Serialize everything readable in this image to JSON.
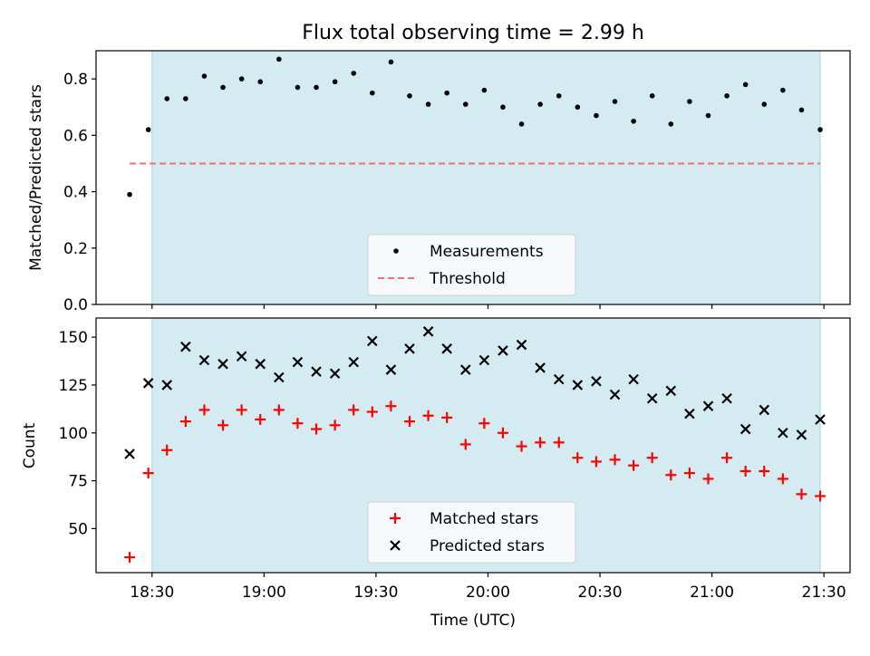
{
  "chart_data": [
    {
      "type": "scatter",
      "title": "Flux total observing time = 2.99 h",
      "xlabel": "",
      "ylabel": "Matched/Predicted stars",
      "ylim": [
        0,
        0.9
      ],
      "yticks": [
        0.0,
        0.2,
        0.4,
        0.6,
        0.8
      ],
      "ytick_labels": [
        "0.0",
        "0.2",
        "0.4",
        "0.6",
        "0.8"
      ],
      "xlim": [
        "18:15",
        "21:37"
      ],
      "xticks": [
        "18:30",
        "19:00",
        "19:30",
        "20:00",
        "20:30",
        "21:00",
        "21:30"
      ],
      "shaded_span": [
        "18:30",
        "21:29"
      ],
      "shade_color": "#d4ebf1",
      "grid": false,
      "legend": {
        "placement": "lower center",
        "entries": [
          "Measurements",
          "Threshold"
        ]
      },
      "series": [
        {
          "name": "Measurements",
          "marker": "dot",
          "color": "#000000",
          "x": [
            "18:24",
            "18:29",
            "18:34",
            "18:39",
            "18:44",
            "18:49",
            "18:54",
            "18:59",
            "19:04",
            "19:09",
            "19:14",
            "19:19",
            "19:24",
            "19:29",
            "19:34",
            "19:39",
            "19:44",
            "19:49",
            "19:54",
            "19:59",
            "20:04",
            "20:09",
            "20:14",
            "20:19",
            "20:24",
            "20:29",
            "20:34",
            "20:39",
            "20:44",
            "20:49",
            "20:54",
            "20:59",
            "21:04",
            "21:09",
            "21:14",
            "21:19",
            "21:24",
            "21:29"
          ],
          "values": [
            0.39,
            0.62,
            0.73,
            0.73,
            0.81,
            0.77,
            0.8,
            0.79,
            0.87,
            0.77,
            0.77,
            0.79,
            0.82,
            0.75,
            0.86,
            0.74,
            0.71,
            0.75,
            0.71,
            0.76,
            0.7,
            0.64,
            0.71,
            0.74,
            0.7,
            0.67,
            0.72,
            0.65,
            0.74,
            0.64,
            0.72,
            0.67,
            0.74,
            0.78,
            0.71,
            0.76,
            0.69,
            0.62
          ]
        },
        {
          "name": "Threshold",
          "marker": "dashed-line",
          "color": "#f07070",
          "x": [
            "18:24",
            "21:29"
          ],
          "values": [
            0.5,
            0.5
          ]
        }
      ]
    },
    {
      "type": "scatter",
      "title": "",
      "xlabel": "Time (UTC)",
      "ylabel": "Count",
      "ylim": [
        27,
        160
      ],
      "yticks": [
        50,
        75,
        100,
        125,
        150
      ],
      "ytick_labels": [
        "50",
        "75",
        "100",
        "125",
        "150"
      ],
      "xlim": [
        "18:15",
        "21:37"
      ],
      "xticks": [
        "18:30",
        "19:00",
        "19:30",
        "20:00",
        "20:30",
        "21:00",
        "21:30"
      ],
      "xtick_labels": [
        "18:30",
        "19:00",
        "19:30",
        "20:00",
        "20:30",
        "21:00",
        "21:30"
      ],
      "shaded_span": [
        "18:30",
        "21:29"
      ],
      "shade_color": "#d4ebf1",
      "grid": false,
      "legend": {
        "placement": "lower center",
        "entries": [
          "Matched stars",
          "Predicted stars"
        ]
      },
      "series": [
        {
          "name": "Matched stars",
          "marker": "plus",
          "color": "#ff0000",
          "x": [
            "18:24",
            "18:29",
            "18:34",
            "18:39",
            "18:44",
            "18:49",
            "18:54",
            "18:59",
            "19:04",
            "19:09",
            "19:14",
            "19:19",
            "19:24",
            "19:29",
            "19:34",
            "19:39",
            "19:44",
            "19:49",
            "19:54",
            "19:59",
            "20:04",
            "20:09",
            "20:14",
            "20:19",
            "20:24",
            "20:29",
            "20:34",
            "20:39",
            "20:44",
            "20:49",
            "20:54",
            "20:59",
            "21:04",
            "21:09",
            "21:14",
            "21:19",
            "21:24",
            "21:29"
          ],
          "values": [
            35,
            79,
            91,
            106,
            112,
            104,
            112,
            107,
            112,
            105,
            102,
            104,
            112,
            111,
            114,
            106,
            109,
            108,
            94,
            105,
            100,
            93,
            95,
            95,
            87,
            85,
            86,
            83,
            87,
            78,
            79,
            76,
            87,
            80,
            80,
            76,
            68,
            67
          ]
        },
        {
          "name": "Predicted stars",
          "marker": "x",
          "color": "#000000",
          "x": [
            "18:24",
            "18:29",
            "18:34",
            "18:39",
            "18:44",
            "18:49",
            "18:54",
            "18:59",
            "19:04",
            "19:09",
            "19:14",
            "19:19",
            "19:24",
            "19:29",
            "19:34",
            "19:39",
            "19:44",
            "19:49",
            "19:54",
            "19:59",
            "20:04",
            "20:09",
            "20:14",
            "20:19",
            "20:24",
            "20:29",
            "20:34",
            "20:39",
            "20:44",
            "20:49",
            "20:54",
            "20:59",
            "21:04",
            "21:09",
            "21:14",
            "21:19",
            "21:24",
            "21:29"
          ],
          "values": [
            89,
            126,
            125,
            145,
            138,
            136,
            140,
            136,
            129,
            137,
            132,
            131,
            137,
            148,
            133,
            144,
            153,
            144,
            133,
            138,
            143,
            146,
            134,
            128,
            125,
            127,
            120,
            128,
            118,
            122,
            110,
            114,
            118,
            102,
            112,
            100,
            99,
            107
          ]
        }
      ]
    }
  ]
}
